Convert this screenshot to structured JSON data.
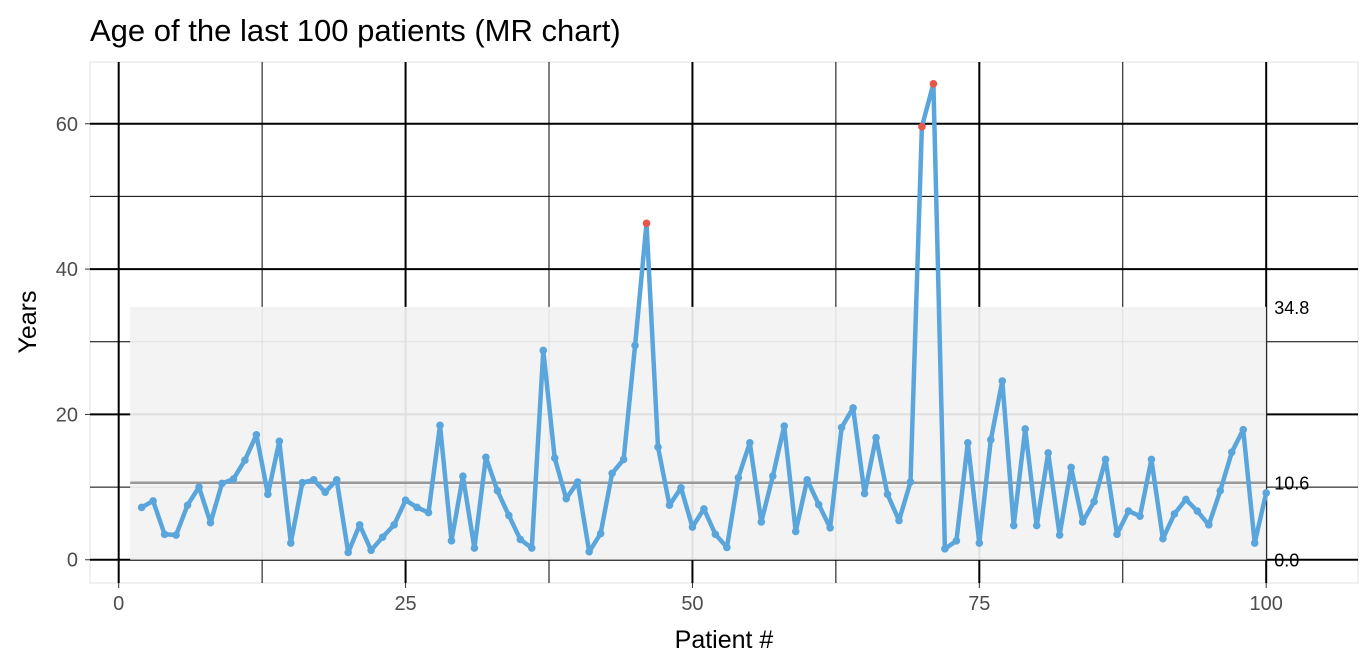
{
  "chart_data": {
    "type": "line",
    "title": "Age of the last 100 patients (MR chart)",
    "xlabel": "Patient #",
    "ylabel": "Years",
    "xlim": [
      -2.5,
      108
    ],
    "ylim": [
      -3.2,
      68.5
    ],
    "x_ticks": [
      0,
      25,
      50,
      75,
      100
    ],
    "x_tick_labels": [
      "0",
      "25",
      "50",
      "75",
      "100"
    ],
    "y_ticks": [
      0,
      20,
      40,
      60
    ],
    "y_tick_labels": [
      "0",
      "20",
      "40",
      "60"
    ],
    "grid": true,
    "legend": "none",
    "control_limits": {
      "lower": 0.0,
      "center": 10.6,
      "upper": 34.8,
      "lower_label": "0.0",
      "center_label": "10.6",
      "upper_label": "34.8",
      "x_start": 1,
      "x_end": 100
    },
    "colors": {
      "line": "#5aa6dc",
      "out_of_control": "#e8564a",
      "band": "#f2f2f2",
      "center_line": "#999999"
    },
    "series": [
      {
        "x": [
          2,
          3,
          4,
          5,
          6,
          7,
          8,
          9,
          10,
          11,
          12,
          13,
          14,
          15,
          16,
          17,
          18,
          19,
          20,
          21,
          22,
          23,
          24,
          25,
          26,
          27,
          28,
          29,
          30,
          31,
          32,
          33,
          34,
          35,
          36,
          37,
          38,
          39,
          40,
          41,
          42,
          43,
          44,
          45,
          46,
          47,
          48,
          49,
          50,
          51,
          52,
          53,
          54,
          55,
          56,
          57,
          58,
          59,
          60,
          61,
          62,
          63,
          64,
          65,
          66,
          67,
          68,
          69,
          70,
          71,
          72,
          73,
          74,
          75,
          76,
          77,
          78,
          79,
          80,
          81,
          82,
          83,
          84,
          85,
          86,
          87,
          88,
          89,
          90,
          91,
          92,
          93,
          94,
          95,
          96,
          97,
          98,
          99,
          100
        ],
        "values": [
          7.2,
          8.1,
          3.5,
          3.4,
          7.5,
          10.0,
          5.1,
          10.5,
          11.1,
          13.7,
          17.2,
          9.0,
          16.3,
          2.3,
          10.6,
          11.0,
          9.3,
          11.0,
          1.0,
          4.8,
          1.3,
          3.1,
          4.8,
          8.2,
          7.2,
          6.5,
          18.5,
          2.6,
          11.5,
          1.6,
          14.1,
          9.5,
          6.1,
          2.8,
          1.6,
          28.8,
          14.0,
          8.4,
          10.7,
          1.1,
          3.6,
          11.9,
          13.8,
          29.5,
          46.3,
          15.5,
          7.5,
          9.9,
          4.5,
          7.0,
          3.5,
          1.7,
          11.3,
          16.1,
          5.2,
          11.5,
          18.4,
          3.9,
          11.0,
          7.6,
          4.4,
          18.2,
          20.9,
          9.1,
          16.8,
          9.0,
          5.4,
          10.7,
          59.6,
          65.5,
          1.5,
          2.6,
          16.1,
          2.3,
          16.5,
          24.6,
          4.7,
          18.0,
          4.7,
          14.7,
          3.4,
          12.7,
          5.2,
          8.0,
          13.8,
          3.5,
          6.7,
          6.0,
          13.8,
          2.9,
          6.3,
          8.3,
          6.7,
          4.8,
          9.5,
          14.8,
          17.9,
          2.3,
          9.2
        ],
        "out_of_control_x": [
          46,
          70,
          71
        ]
      }
    ]
  }
}
